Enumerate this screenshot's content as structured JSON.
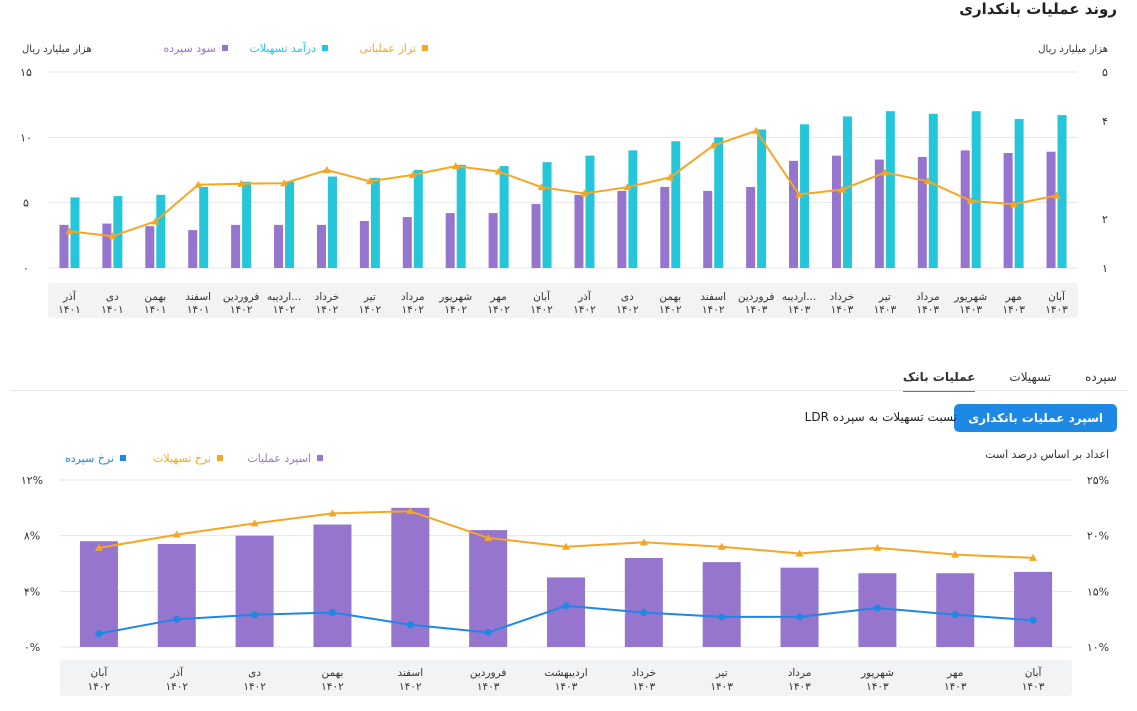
{
  "page_title": "روند عملیات بانکداری",
  "chart_data": [
    {
      "type": "bar",
      "title": "",
      "ylabel_left": "هزار میلیارد ریال",
      "ylabel_right": "هزار میلیارد ریال",
      "y_left_ticks": [
        "۰",
        "۵",
        "۱۰",
        "۱۵"
      ],
      "y_right_ticks": [
        "۱",
        "۲",
        "۴",
        "۵"
      ],
      "ylim_left": [
        0,
        15
      ],
      "ylim_right": [
        1,
        5
      ],
      "legend_position": "top-center",
      "legend": [
        {
          "name": "تراز عملیاتی",
          "color": "#f5a623"
        },
        {
          "name": "درآمد تسهیلات",
          "color": "#26c6da"
        },
        {
          "name": "سود سپرده",
          "color": "#9575cd"
        }
      ],
      "categories": [
        {
          "month": "آذر",
          "year": "۱۴۰۱"
        },
        {
          "month": "دی",
          "year": "۱۴۰۱"
        },
        {
          "month": "بهمن",
          "year": "۱۴۰۱"
        },
        {
          "month": "اسفند",
          "year": "۱۴۰۱"
        },
        {
          "month": "فروردین",
          "year": "۱۴۰۲"
        },
        {
          "month": "اردیبه...",
          "year": "۱۴۰۲"
        },
        {
          "month": "خرداد",
          "year": "۱۴۰۲"
        },
        {
          "month": "تیر",
          "year": "۱۴۰۲"
        },
        {
          "month": "مرداد",
          "year": "۱۴۰۲"
        },
        {
          "month": "شهریور",
          "year": "۱۴۰۲"
        },
        {
          "month": "مهر",
          "year": "۱۴۰۲"
        },
        {
          "month": "آبان",
          "year": "۱۴۰۲"
        },
        {
          "month": "آذر",
          "year": "۱۴۰۲"
        },
        {
          "month": "دی",
          "year": "۱۴۰۲"
        },
        {
          "month": "بهمن",
          "year": "۱۴۰۲"
        },
        {
          "month": "اسفند",
          "year": "۱۴۰۲"
        },
        {
          "month": "فروردین",
          "year": "۱۴۰۳"
        },
        {
          "month": "اردیبه...",
          "year": "۱۴۰۳"
        },
        {
          "month": "خرداد",
          "year": "۱۴۰۳"
        },
        {
          "month": "تیر",
          "year": "۱۴۰۳"
        },
        {
          "month": "مرداد",
          "year": "۱۴۰۳"
        },
        {
          "month": "شهریور",
          "year": "۱۴۰۳"
        },
        {
          "month": "مهر",
          "year": "۱۴۰۳"
        },
        {
          "month": "آبان",
          "year": "۱۴۰۳"
        }
      ],
      "series": [
        {
          "name": "سود سپرده",
          "axis": "left",
          "kind": "bar",
          "values": [
            3.3,
            3.4,
            3.2,
            2.9,
            3.3,
            3.3,
            3.3,
            3.6,
            3.9,
            4.2,
            4.2,
            4.9,
            5.6,
            5.9,
            6.2,
            5.9,
            6.2,
            8.2,
            8.6,
            8.3,
            8.5,
            9.0,
            8.8,
            8.9
          ]
        },
        {
          "name": "درآمد تسهیلات",
          "axis": "left",
          "kind": "bar",
          "values": [
            5.4,
            5.5,
            5.6,
            6.2,
            6.6,
            6.6,
            7.0,
            6.9,
            7.5,
            7.9,
            7.8,
            8.1,
            8.6,
            9.0,
            9.7,
            10.0,
            10.6,
            11.0,
            11.6,
            12.0,
            11.8,
            12.0,
            11.4,
            11.7
          ]
        },
        {
          "name": "تراز عملیاتی",
          "axis": "right",
          "kind": "line",
          "values": [
            1.75,
            1.65,
            1.95,
            2.7,
            2.72,
            2.73,
            3.0,
            2.77,
            2.9,
            3.08,
            2.97,
            2.65,
            2.52,
            2.65,
            2.85,
            3.5,
            3.8,
            2.5,
            2.6,
            2.95,
            2.77,
            2.37,
            2.3,
            2.48
          ]
        }
      ]
    },
    {
      "type": "bar",
      "title": "",
      "y_left_ticks": [
        "۰%",
        "۴%",
        "۸%",
        "۱۲%"
      ],
      "y_right_ticks": [
        "۱۰%",
        "۱۵%",
        "۲۰%",
        "۲۵%"
      ],
      "ylim_left": [
        0,
        12
      ],
      "ylim_right": [
        10,
        25
      ],
      "legend_position": "top-center",
      "legend": [
        {
          "name": "اسپرد عملیات",
          "color": "#9575cd"
        },
        {
          "name": "نرخ تسهیلات",
          "color": "#f5a623"
        },
        {
          "name": "نرخ سپرده",
          "color": "#1e88e5"
        }
      ],
      "categories": [
        {
          "month": "آبان",
          "year": "۱۴۰۲"
        },
        {
          "month": "آذر",
          "year": "۱۴۰۲"
        },
        {
          "month": "دی",
          "year": "۱۴۰۲"
        },
        {
          "month": "بهمن",
          "year": "۱۴۰۲"
        },
        {
          "month": "اسفند",
          "year": "۱۴۰۲"
        },
        {
          "month": "فروردین",
          "year": "۱۴۰۳"
        },
        {
          "month": "اردیبهشت",
          "year": "۱۴۰۳"
        },
        {
          "month": "خرداد",
          "year": "۱۴۰۳"
        },
        {
          "month": "تیر",
          "year": "۱۴۰۳"
        },
        {
          "month": "مرداد",
          "year": "۱۴۰۳"
        },
        {
          "month": "شهریور",
          "year": "۱۴۰۳"
        },
        {
          "month": "مهر",
          "year": "۱۴۰۳"
        },
        {
          "month": "آبان",
          "year": "۱۴۰۳"
        }
      ],
      "series": [
        {
          "name": "اسپرد عملیات",
          "axis": "left",
          "kind": "bar",
          "values": [
            7.6,
            7.4,
            8.0,
            8.8,
            10.0,
            8.4,
            5.0,
            6.4,
            6.1,
            5.7,
            5.3,
            5.3,
            5.4
          ]
        },
        {
          "name": "نرخ تسهیلات",
          "axis": "right",
          "kind": "line",
          "values": [
            18.9,
            20.1,
            21.1,
            22.0,
            22.2,
            19.8,
            19.0,
            19.4,
            19.0,
            18.4,
            18.9,
            18.3,
            18.0
          ]
        },
        {
          "name": "نرخ سپرده",
          "axis": "right",
          "kind": "line",
          "values": [
            11.2,
            12.5,
            12.9,
            13.1,
            12.0,
            11.3,
            13.7,
            13.1,
            12.7,
            12.7,
            13.5,
            12.9,
            12.4
          ]
        }
      ]
    }
  ],
  "tabs": [
    {
      "label": "سپرده",
      "active": false
    },
    {
      "label": "تسهیلات",
      "active": false
    },
    {
      "label": "عملیات بانک",
      "active": true
    }
  ],
  "sub_button_label": "اسپرد عملیات بانکداری",
  "sub_text": "نسبت تسهیلات به سپرده LDR",
  "note_text": "اعداد بر اساس درصد است"
}
